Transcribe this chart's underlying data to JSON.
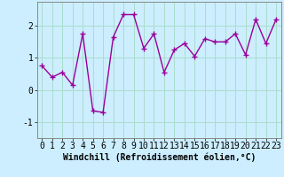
{
  "x": [
    0,
    1,
    2,
    3,
    4,
    5,
    6,
    7,
    8,
    9,
    10,
    11,
    12,
    13,
    14,
    15,
    16,
    17,
    18,
    19,
    20,
    21,
    22,
    23
  ],
  "y": [
    0.75,
    0.4,
    0.55,
    0.15,
    1.75,
    -0.65,
    -0.7,
    1.65,
    2.35,
    2.35,
    1.3,
    1.75,
    0.55,
    1.25,
    1.45,
    1.05,
    1.6,
    1.5,
    1.5,
    1.75,
    1.1,
    2.2,
    1.45,
    2.2
  ],
  "line_color": "#990099",
  "marker": "+",
  "marker_size": 4,
  "bg_color": "#cceeff",
  "grid_color": "#aaddcc",
  "xlabel": "Windchill (Refroidissement éolien,°C)",
  "ylim": [
    -1.5,
    2.75
  ],
  "yticks": [
    -1,
    0,
    1,
    2
  ],
  "xticks": [
    0,
    1,
    2,
    3,
    4,
    5,
    6,
    7,
    8,
    9,
    10,
    11,
    12,
    13,
    14,
    15,
    16,
    17,
    18,
    19,
    20,
    21,
    22,
    23
  ],
  "xlabel_fontsize": 7.0,
  "tick_fontsize": 7.0,
  "line_width": 1.0,
  "markeredgewidth": 1.0
}
